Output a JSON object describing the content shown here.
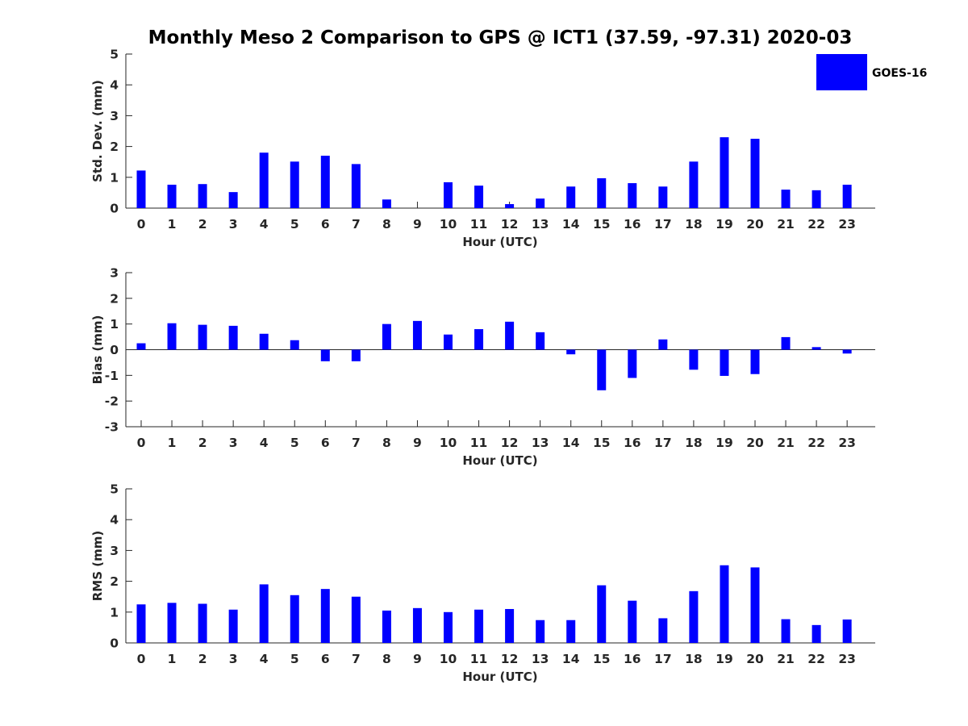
{
  "chart_data": {
    "title": "Monthly Meso 2 Comparison to GPS @ ICT1 (37.59, -97.31) 2020-03",
    "legend": {
      "label": "GOES-16",
      "color": "#0000ff",
      "placement": "top-right"
    },
    "panels": [
      {
        "type": "bar",
        "name": "std-dev",
        "ylabel": "Std. Dev. (mm)",
        "xlabel": "Hour (UTC)",
        "ylim": [
          0,
          5
        ],
        "yticks": [
          0,
          1,
          2,
          3,
          4,
          5
        ],
        "categories": [
          "0",
          "1",
          "2",
          "3",
          "4",
          "5",
          "6",
          "7",
          "8",
          "9",
          "10",
          "11",
          "12",
          "13",
          "14",
          "15",
          "16",
          "17",
          "18",
          "19",
          "20",
          "21",
          "22",
          "23"
        ],
        "series": [
          {
            "name": "GOES-16",
            "color": "#0000ff",
            "values": [
              1.22,
              0.76,
              0.78,
              0.52,
              1.8,
              1.51,
              1.7,
              1.43,
              0.28,
              0.0,
              0.84,
              0.73,
              0.13,
              0.31,
              0.7,
              0.97,
              0.81,
              0.7,
              1.51,
              2.3,
              2.25,
              0.6,
              0.58,
              0.76
            ]
          }
        ]
      },
      {
        "type": "bar",
        "name": "bias",
        "ylabel": "Bias (mm)",
        "xlabel": "Hour (UTC)",
        "ylim": [
          -3,
          3
        ],
        "yticks": [
          -3,
          -2,
          -1,
          0,
          1,
          2,
          3
        ],
        "zero_line": true,
        "categories": [
          "0",
          "1",
          "2",
          "3",
          "4",
          "5",
          "6",
          "7",
          "8",
          "9",
          "10",
          "11",
          "12",
          "13",
          "14",
          "15",
          "16",
          "17",
          "18",
          "19",
          "20",
          "21",
          "22",
          "23"
        ],
        "series": [
          {
            "name": "GOES-16",
            "color": "#0000ff",
            "values": [
              0.25,
              1.03,
              0.97,
              0.93,
              0.62,
              0.37,
              -0.45,
              -0.45,
              1.0,
              1.12,
              0.59,
              0.8,
              1.09,
              0.68,
              -0.18,
              -1.58,
              -1.1,
              0.4,
              -0.78,
              -1.02,
              -0.95,
              0.49,
              0.1,
              -0.15
            ]
          }
        ]
      },
      {
        "type": "bar",
        "name": "rms",
        "ylabel": "RMS (mm)",
        "xlabel": "Hour (UTC)",
        "ylim": [
          0,
          5
        ],
        "yticks": [
          0,
          1,
          2,
          3,
          4,
          5
        ],
        "categories": [
          "0",
          "1",
          "2",
          "3",
          "4",
          "5",
          "6",
          "7",
          "8",
          "9",
          "10",
          "11",
          "12",
          "13",
          "14",
          "15",
          "16",
          "17",
          "18",
          "19",
          "20",
          "21",
          "22",
          "23"
        ],
        "series": [
          {
            "name": "GOES-16",
            "color": "#0000ff",
            "values": [
              1.25,
              1.3,
              1.27,
              1.08,
              1.9,
              1.55,
              1.75,
              1.5,
              1.05,
              1.13,
              1.0,
              1.08,
              1.1,
              0.74,
              0.74,
              1.87,
              1.37,
              0.8,
              1.68,
              2.52,
              2.45,
              0.77,
              0.58,
              0.76
            ]
          }
        ]
      }
    ]
  }
}
